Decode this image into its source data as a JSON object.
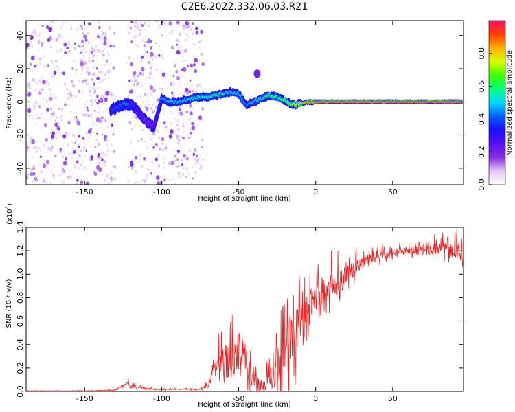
{
  "title": "C2E6.2022.332.06.03.R21",
  "chart_data": [
    {
      "type": "heatmap",
      "name": "spectrogram",
      "xlabel": "Height of straight line (km)",
      "ylabel": "Frequency (Hz)",
      "xlim": [
        -188,
        96
      ],
      "ylim": [
        -50,
        49
      ],
      "xticks": [
        -150,
        -100,
        -50,
        0,
        50
      ],
      "yticks": [
        -40,
        -20,
        0,
        20,
        40
      ],
      "colorbar": {
        "label": "Normalized spectral amplitude",
        "range": [
          0.0,
          1.0
        ],
        "ticks": [
          "0.0",
          "0.2",
          "0.4",
          "0.6",
          "0.8"
        ],
        "colors": [
          "#ffffff",
          "#e3c6f6",
          "#8a2be2",
          "#5b10f0",
          "#1a10ff",
          "#0060ff",
          "#00d8ff",
          "#00ff80",
          "#40ff00",
          "#d8ff00",
          "#ffb000",
          "#ff4000",
          "#ff1060"
        ]
      },
      "signal_track": {
        "x": [
          -133,
          -128,
          -123,
          -119,
          -115,
          -110,
          -105,
          -100,
          -95,
          -90,
          -85,
          -80,
          -75,
          -70,
          -65,
          -60,
          -55,
          -50,
          -45,
          -40,
          -35,
          -30,
          -25,
          -20,
          -15,
          -10,
          -5,
          0,
          20,
          40,
          60,
          80,
          96
        ],
        "freq": [
          -5,
          -3,
          -1,
          -2,
          -6,
          -12,
          -15,
          2,
          0,
          0,
          1,
          2,
          3,
          3,
          4,
          5,
          6,
          5,
          -2,
          0,
          2,
          4,
          3,
          1,
          -2,
          -1,
          0,
          0,
          0,
          0,
          0,
          0,
          0
        ],
        "amplitude": [
          0.35,
          0.4,
          0.45,
          0.35,
          0.3,
          0.25,
          0.25,
          0.45,
          0.5,
          0.5,
          0.5,
          0.55,
          0.55,
          0.55,
          0.55,
          0.55,
          0.5,
          0.5,
          0.45,
          0.5,
          0.55,
          0.6,
          0.6,
          0.65,
          0.7,
          0.8,
          0.85,
          0.9,
          0.92,
          0.92,
          0.92,
          0.92,
          0.92
        ]
      },
      "noise_regions": [
        [
          -188,
          -130
        ],
        [
          -122,
          -97
        ],
        [
          -95,
          -73
        ]
      ],
      "features": [
        {
          "x": -38,
          "freq": 17,
          "amplitude": 0.2
        }
      ]
    },
    {
      "type": "line",
      "name": "snr",
      "xlabel": "Height of straight line (km)",
      "ylabel": "SNR (10 * v/v)",
      "yscale_label": "(x10^4)",
      "scale_prefix": "(x10",
      "scale_exponent": "4",
      "scale_suffix": ")",
      "xlim": [
        -188,
        96
      ],
      "ylim": [
        0.0,
        1.4
      ],
      "xticks": [
        -150,
        -100,
        -50,
        0,
        50
      ],
      "yticks": [
        "0.0",
        "0.2",
        "0.4",
        "0.6",
        "0.8",
        "1.0",
        "1.2",
        "1.4"
      ],
      "color": "#ee2222",
      "envelope": {
        "x": [
          -188,
          -150,
          -130,
          -125,
          -122,
          -115,
          -100,
          -85,
          -75,
          -70,
          -65,
          -60,
          -55,
          -50,
          -47,
          -45,
          -40,
          -35,
          -30,
          -25,
          -22,
          -20,
          -15,
          -10,
          -5,
          0,
          10,
          20,
          30,
          40,
          50,
          60,
          70,
          80,
          90,
          96
        ],
        "base": [
          0.005,
          0.005,
          0.01,
          0.05,
          0.06,
          0.03,
          0.015,
          0.02,
          0.02,
          0.05,
          0.2,
          0.25,
          0.3,
          0.35,
          0.3,
          0.2,
          0.08,
          0.03,
          0.1,
          0.25,
          0.3,
          0.35,
          0.45,
          0.55,
          0.65,
          0.8,
          0.9,
          1.0,
          1.1,
          1.15,
          1.18,
          1.2,
          1.2,
          1.21,
          1.19,
          1.2
        ],
        "spread": [
          0.003,
          0.004,
          0.006,
          0.02,
          0.04,
          0.02,
          0.008,
          0.01,
          0.01,
          0.05,
          0.12,
          0.3,
          0.35,
          0.4,
          0.4,
          0.35,
          0.2,
          0.08,
          0.25,
          0.4,
          0.45,
          0.5,
          0.45,
          0.4,
          0.35,
          0.3,
          0.22,
          0.15,
          0.1,
          0.08,
          0.07,
          0.07,
          0.08,
          0.12,
          0.15,
          0.15
        ]
      }
    }
  ]
}
